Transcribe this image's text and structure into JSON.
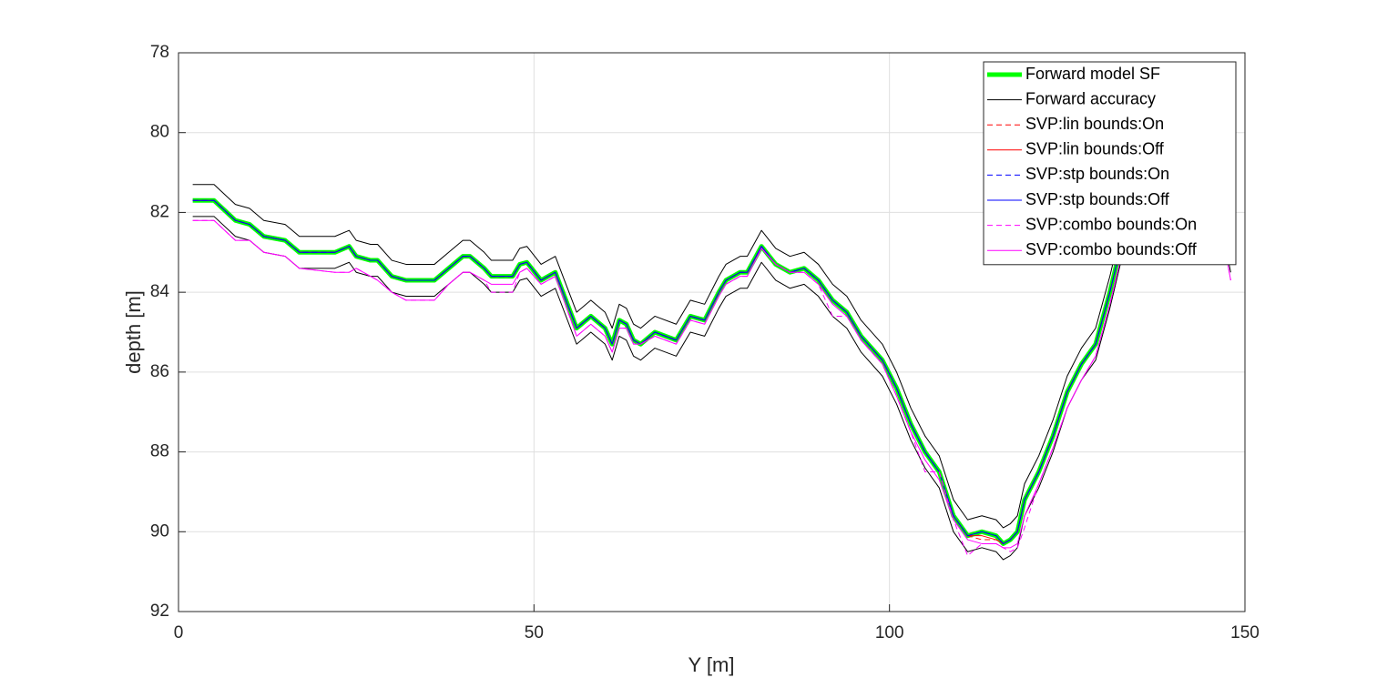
{
  "chart_data": {
    "type": "line",
    "xlabel": "Y [m]",
    "ylabel": "depth [m]",
    "xlim": [
      0,
      150
    ],
    "xticks": [
      0,
      50,
      100,
      150
    ],
    "ylim": [
      78,
      92
    ],
    "yticks": [
      78,
      80,
      82,
      84,
      86,
      88,
      90,
      92
    ],
    "y_reversed": true,
    "grid": true,
    "legend": "northeast",
    "x": [
      2,
      5,
      8,
      10,
      12,
      15,
      17,
      22,
      24,
      25,
      27,
      28,
      30,
      32,
      36,
      38,
      40,
      41,
      43,
      44,
      47,
      48,
      49,
      51,
      53,
      56,
      58,
      60,
      61,
      62,
      63,
      64,
      65,
      67,
      70,
      72,
      74,
      76,
      77,
      79,
      80,
      82,
      84,
      86,
      88,
      90,
      92,
      94,
      96,
      99,
      101,
      103,
      105,
      107,
      109,
      111,
      113,
      115,
      116,
      117,
      118,
      119,
      121,
      123,
      125,
      127,
      129,
      131,
      133,
      136,
      140,
      145,
      148
    ],
    "series": [
      {
        "name": "Forward model SF",
        "color": "#00ff00",
        "width": 5,
        "dash": false,
        "values": [
          81.7,
          81.7,
          82.2,
          82.3,
          82.6,
          82.7,
          83.0,
          83.0,
          82.85,
          83.1,
          83.2,
          83.2,
          83.6,
          83.7,
          83.7,
          83.4,
          83.1,
          83.1,
          83.4,
          83.6,
          83.6,
          83.3,
          83.25,
          83.7,
          83.5,
          84.9,
          84.6,
          84.9,
          85.3,
          84.7,
          84.8,
          85.2,
          85.3,
          85.0,
          85.2,
          84.6,
          84.7,
          84.0,
          83.7,
          83.5,
          83.5,
          82.85,
          83.3,
          83.5,
          83.4,
          83.7,
          84.2,
          84.5,
          85.1,
          85.7,
          86.4,
          87.3,
          88.0,
          88.5,
          89.6,
          90.1,
          90.0,
          90.1,
          90.3,
          90.2,
          90.0,
          89.2,
          88.5,
          87.6,
          86.5,
          85.8,
          85.3,
          84.0,
          82.5,
          81.0,
          80.0,
          80.5,
          83.1
        ]
      },
      {
        "name": "Forward accuracy",
        "color": "#000000",
        "width": 1,
        "dash": false,
        "values": [
          81.3,
          81.3,
          81.8,
          81.9,
          82.2,
          82.3,
          82.6,
          82.6,
          82.45,
          82.7,
          82.8,
          82.8,
          83.2,
          83.3,
          83.3,
          83.0,
          82.7,
          82.7,
          83.0,
          83.2,
          83.2,
          82.9,
          82.85,
          83.3,
          83.1,
          84.5,
          84.2,
          84.5,
          84.9,
          84.3,
          84.4,
          84.8,
          84.9,
          84.6,
          84.8,
          84.2,
          84.3,
          83.6,
          83.3,
          83.1,
          83.1,
          82.45,
          82.9,
          83.1,
          83.0,
          83.3,
          83.8,
          84.1,
          84.7,
          85.3,
          86.0,
          86.9,
          87.6,
          88.1,
          89.2,
          89.7,
          89.6,
          89.7,
          89.9,
          89.8,
          89.6,
          88.8,
          88.1,
          87.2,
          86.1,
          85.4,
          84.9,
          83.6,
          82.1,
          80.6,
          79.6,
          80.1,
          82.7
        ],
        "values_lower": [
          82.1,
          82.1,
          82.6,
          82.7,
          83.0,
          83.1,
          83.4,
          83.4,
          83.25,
          83.5,
          83.6,
          83.6,
          84.0,
          84.1,
          84.1,
          83.8,
          83.5,
          83.5,
          83.8,
          84.0,
          84.0,
          83.7,
          83.65,
          84.1,
          83.9,
          85.3,
          85.0,
          85.3,
          85.7,
          85.1,
          85.2,
          85.6,
          85.7,
          85.4,
          85.6,
          85.0,
          85.1,
          84.4,
          84.1,
          83.9,
          83.9,
          83.25,
          83.7,
          83.9,
          83.8,
          84.1,
          84.6,
          84.9,
          85.5,
          86.1,
          86.8,
          87.7,
          88.4,
          88.9,
          90.0,
          90.5,
          90.4,
          90.5,
          90.7,
          90.6,
          90.4,
          89.6,
          88.9,
          88.0,
          86.9,
          86.2,
          85.7,
          84.4,
          82.9,
          81.4,
          80.4,
          80.9,
          83.5
        ]
      },
      {
        "name": "SVP:lin bounds:On",
        "color": "#ff0000",
        "width": 1,
        "dash": true,
        "values": [
          81.7,
          81.7,
          82.2,
          82.3,
          82.6,
          82.7,
          83.0,
          83.0,
          82.85,
          83.1,
          83.2,
          83.2,
          83.6,
          83.7,
          83.7,
          83.4,
          83.1,
          83.1,
          83.4,
          83.6,
          83.6,
          83.3,
          83.25,
          83.7,
          83.5,
          84.9,
          84.6,
          84.9,
          85.3,
          84.7,
          84.8,
          85.2,
          85.3,
          85.0,
          85.2,
          84.6,
          84.7,
          84.0,
          83.7,
          83.5,
          83.5,
          82.85,
          83.3,
          83.5,
          83.4,
          83.7,
          84.2,
          84.5,
          85.1,
          85.7,
          86.4,
          87.3,
          88.0,
          88.5,
          89.6,
          90.1,
          90.2,
          90.2,
          90.3,
          90.2,
          90.0,
          89.2,
          88.5,
          87.6,
          86.5,
          85.8,
          85.3,
          84.0,
          82.5,
          81.0,
          80.0,
          80.5,
          83.1
        ]
      },
      {
        "name": "SVP:lin bounds:Off",
        "color": "#ff0000",
        "width": 1,
        "dash": false,
        "values": [
          81.7,
          81.7,
          82.2,
          82.3,
          82.6,
          82.7,
          83.0,
          83.0,
          82.85,
          83.1,
          83.2,
          83.2,
          83.6,
          83.7,
          83.7,
          83.4,
          83.1,
          83.1,
          83.4,
          83.6,
          83.6,
          83.3,
          83.25,
          83.7,
          83.5,
          84.9,
          84.6,
          84.9,
          85.3,
          84.7,
          84.8,
          85.2,
          85.3,
          85.0,
          85.2,
          84.6,
          84.7,
          84.0,
          83.7,
          83.5,
          83.5,
          82.85,
          83.3,
          83.5,
          83.4,
          83.7,
          84.2,
          84.5,
          85.1,
          85.7,
          86.4,
          87.3,
          88.0,
          88.5,
          89.6,
          90.1,
          90.1,
          90.2,
          90.3,
          90.2,
          90.0,
          89.2,
          88.5,
          87.6,
          86.5,
          85.8,
          85.3,
          84.0,
          82.5,
          81.0,
          80.0,
          80.5,
          83.1
        ]
      },
      {
        "name": "SVP:stp bounds:On",
        "color": "#0000ff",
        "width": 1,
        "dash": true,
        "values": [
          81.7,
          81.7,
          82.2,
          82.3,
          82.6,
          82.7,
          83.0,
          83.0,
          82.85,
          83.1,
          83.2,
          83.2,
          83.6,
          83.7,
          83.7,
          83.4,
          83.1,
          83.1,
          83.4,
          83.6,
          83.6,
          83.3,
          83.25,
          83.7,
          83.5,
          84.9,
          84.6,
          84.9,
          85.3,
          84.7,
          84.8,
          85.2,
          85.3,
          85.0,
          85.2,
          84.6,
          84.7,
          84.0,
          83.7,
          83.5,
          83.5,
          82.85,
          83.3,
          83.5,
          83.4,
          83.7,
          84.2,
          84.5,
          85.1,
          85.7,
          86.4,
          87.3,
          88.0,
          88.5,
          89.6,
          90.1,
          90.0,
          90.1,
          90.3,
          90.2,
          90.0,
          89.2,
          88.5,
          87.6,
          86.5,
          85.8,
          85.3,
          84.0,
          82.5,
          81.0,
          80.0,
          80.5,
          83.1
        ]
      },
      {
        "name": "SVP:stp bounds:Off",
        "color": "#0000ff",
        "width": 1,
        "dash": false,
        "values": [
          81.7,
          81.7,
          82.2,
          82.3,
          82.6,
          82.7,
          83.0,
          83.0,
          82.85,
          83.1,
          83.2,
          83.2,
          83.6,
          83.7,
          83.7,
          83.4,
          83.1,
          83.1,
          83.4,
          83.6,
          83.6,
          83.3,
          83.25,
          83.7,
          83.5,
          84.9,
          84.6,
          84.9,
          85.3,
          84.7,
          84.8,
          85.2,
          85.3,
          85.0,
          85.2,
          84.6,
          84.7,
          84.0,
          83.7,
          83.5,
          83.5,
          82.85,
          83.3,
          83.5,
          83.4,
          83.7,
          84.2,
          84.5,
          85.1,
          85.7,
          86.4,
          87.3,
          88.0,
          88.5,
          89.6,
          90.1,
          90.0,
          90.1,
          90.3,
          90.2,
          90.0,
          89.2,
          88.5,
          87.6,
          86.5,
          85.8,
          85.3,
          84.0,
          82.5,
          81.0,
          80.0,
          80.5,
          83.1
        ]
      },
      {
        "name": "SVP:combo bounds:On",
        "color": "#ff00ff",
        "width": 1,
        "dash": true,
        "values": [
          82.2,
          82.2,
          82.7,
          82.7,
          83.0,
          83.1,
          83.4,
          83.5,
          83.5,
          83.4,
          83.6,
          83.7,
          84.0,
          84.2,
          84.2,
          83.8,
          83.5,
          83.5,
          83.7,
          84.0,
          84.0,
          83.5,
          83.4,
          83.8,
          83.6,
          85.1,
          84.8,
          85.1,
          85.5,
          84.9,
          84.9,
          85.3,
          85.3,
          85.1,
          85.3,
          84.7,
          84.8,
          84.1,
          83.8,
          83.6,
          83.6,
          82.9,
          83.3,
          83.5,
          83.5,
          83.8,
          84.6,
          84.6,
          85.2,
          85.8,
          86.6,
          87.5,
          88.5,
          88.5,
          89.7,
          90.6,
          90.3,
          90.3,
          90.4,
          90.5,
          90.4,
          89.9,
          88.8,
          87.9,
          86.9,
          86.2,
          85.6,
          84.3,
          82.8,
          81.3,
          80.3,
          80.8,
          83.7
        ]
      },
      {
        "name": "SVP:combo bounds:Off",
        "color": "#ff00ff",
        "width": 1,
        "dash": false,
        "values": [
          82.2,
          82.2,
          82.7,
          82.7,
          83.0,
          83.1,
          83.4,
          83.5,
          83.5,
          83.4,
          83.6,
          83.7,
          84.0,
          84.2,
          84.2,
          83.8,
          83.5,
          83.5,
          83.7,
          83.8,
          83.8,
          83.5,
          83.4,
          83.8,
          83.6,
          85.1,
          84.8,
          85.1,
          85.5,
          84.9,
          84.9,
          85.3,
          85.3,
          85.1,
          85.3,
          84.7,
          84.8,
          84.1,
          83.8,
          83.6,
          83.6,
          82.9,
          83.3,
          83.5,
          83.5,
          83.8,
          84.3,
          84.6,
          85.2,
          85.8,
          86.6,
          87.5,
          88.2,
          88.7,
          89.7,
          90.2,
          90.3,
          90.3,
          90.4,
          90.4,
          90.3,
          89.6,
          88.8,
          87.9,
          86.9,
          86.2,
          85.6,
          84.3,
          82.8,
          81.3,
          80.3,
          80.8,
          83.7
        ]
      }
    ]
  }
}
